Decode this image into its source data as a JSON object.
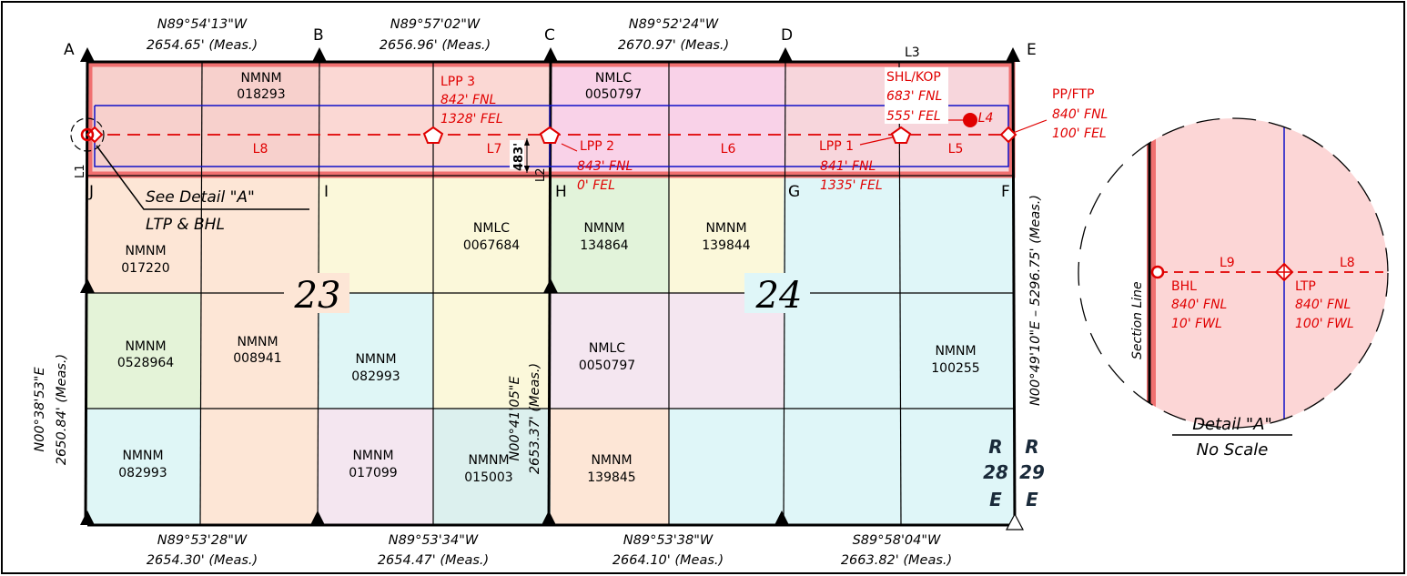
{
  "corners": [
    "A",
    "B",
    "C",
    "D",
    "E",
    "F",
    "G",
    "H",
    "I",
    "J"
  ],
  "bearings": {
    "top_1": "N89°54'13\"W",
    "top_1_dist": "2654.65' (Meas.)",
    "top_2": "N89°57'02\"W",
    "top_2_dist": "2656.96' (Meas.)",
    "top_3": "N89°52'24\"W",
    "top_3_dist": "2670.97' (Meas.)",
    "bottom_1": "N89°53'28\"W",
    "bottom_1_dist": "2654.30' (Meas.)",
    "bottom_2": "N89°53'34\"W",
    "bottom_2_dist": "2654.47' (Meas.)",
    "bottom_3": "N89°53'38\"W",
    "bottom_3_dist": "2664.10' (Meas.)",
    "bottom_4": "S89°58'04\"W",
    "bottom_4_dist": "2663.82' (Meas.)",
    "left": "N00°38'53\"E",
    "left_dist": "2650.84' (Meas.)",
    "middle": "N00°41'05\"E",
    "middle_dist": "2653.37' (Meas.)",
    "right": "N00°49'10\"E – 5296.75' (Meas.)"
  },
  "leases": {
    "l_018293_a": "NMNM",
    "l_018293_b": "018293",
    "l_0050797_a": "NMLC",
    "l_0050797_b": "0050797",
    "l_017220_a": "NMNM",
    "l_017220_b": "017220",
    "l_0067684_a": "NMLC",
    "l_0067684_b": "0067684",
    "l_134864_a": "NMNM",
    "l_134864_b": "134864",
    "l_139844_a": "NMNM",
    "l_139844_b": "139844",
    "l_0528964_a": "NMNM",
    "l_0528964_b": "0528964",
    "l_008941_a": "NMNM",
    "l_008941_b": "008941",
    "l_082993m_a": "NMNM",
    "l_082993m_b": "082993",
    "l_0050797b_a": "NMLC",
    "l_0050797b_b": "0050797",
    "l_100255_a": "NMNM",
    "l_100255_b": "100255",
    "l_082993l_a": "NMNM",
    "l_082993l_b": "082993",
    "l_017099_a": "NMNM",
    "l_017099_b": "017099",
    "l_015003_a": "NMNM",
    "l_015003_b": "015003",
    "l_139845_a": "NMNM",
    "l_139845_b": "139845"
  },
  "sections": {
    "s23": "23",
    "s24": "24"
  },
  "ranges": {
    "r28_1": "R",
    "r28_2": "28",
    "r28_3": "E",
    "r29_1": "R",
    "r29_2": "29",
    "r29_3": "E"
  },
  "points": {
    "lpp3": "LPP 3",
    "lpp3_fnl": "842' FNL",
    "lpp3_fel": "1328' FEL",
    "lpp2": "LPP 2",
    "lpp2_fnl": "843' FNL",
    "lpp2_fel": "0' FEL",
    "lpp1": "LPP 1",
    "lpp1_fnl": "841' FNL",
    "lpp1_fel": "1335' FEL",
    "shl": "SHL/KOP",
    "shl_fnl": "683' FNL",
    "shl_fel": "555' FEL",
    "pp": "PP/FTP",
    "pp_fnl": "840' FNL",
    "pp_fel": "100' FEL"
  },
  "lines": {
    "l1": "L1",
    "l2": "L2",
    "l3": "L3",
    "l4": "L4",
    "l5": "L5",
    "l6": "L6",
    "l7": "L7",
    "l8": "L8"
  },
  "dim_483": "483'",
  "detail_ref": {
    "see": "See Detail \"A\"",
    "sub": "LTP & BHL"
  },
  "detail": {
    "section_line": "Section Line",
    "l9": "L9",
    "l8": "L8",
    "bhl": "BHL",
    "bhl_fnl": "840' FNL",
    "bhl_fwl": "10' FWL",
    "ltp": "LTP",
    "ltp_fnl": "840' FNL",
    "ltp_fwl": "100' FWL",
    "title": "Detail \"A\"",
    "subtitle": "No Scale"
  },
  "colors": {
    "red": "#e00000",
    "blue": "#1010c8",
    "unit_pink": "#fcd6d6",
    "peach": "#fde8d8",
    "cream": "#fdf9d8",
    "mint": "#dff3dc",
    "cyan": "#dcf6f8",
    "lavender": "#f3e4f0",
    "magenta": "#fbdcf6",
    "teal": "#dcf0ee"
  }
}
